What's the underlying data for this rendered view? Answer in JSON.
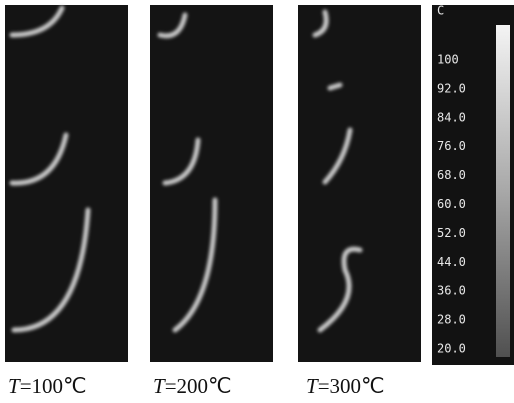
{
  "panels": [
    {
      "symbol": "T",
      "value": "=100℃"
    },
    {
      "symbol": "T",
      "value": "=200℃"
    },
    {
      "symbol": "T",
      "value": "=300℃"
    }
  ],
  "colorbar": {
    "unit": "C",
    "ticks": [
      "100",
      "92.0",
      "84.0",
      "76.0",
      "68.0",
      "60.0",
      "52.0",
      "44.0",
      "36.0",
      "28.0",
      "20.0"
    ]
  }
}
